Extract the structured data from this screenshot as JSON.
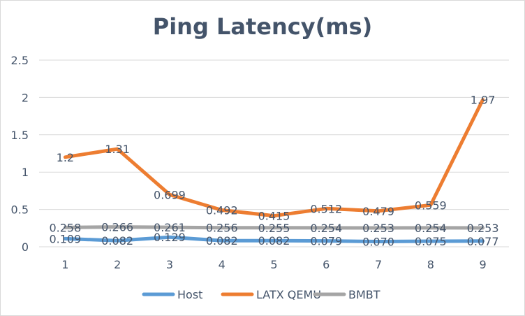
{
  "chart_data": {
    "type": "line",
    "title": "Ping Latency(ms)",
    "categories": [
      "1",
      "2",
      "3",
      "4",
      "5",
      "6",
      "7",
      "8",
      "9"
    ],
    "ylim": [
      0,
      2.5
    ],
    "yticks": [
      "0",
      "0.5",
      "1",
      "1.5",
      "2",
      "2.5"
    ],
    "grid": true,
    "legend_position": "bottom",
    "series": [
      {
        "name": "Host",
        "color": "#5b9bd5",
        "values": [
          0.109,
          0.082,
          0.129,
          0.082,
          0.082,
          0.079,
          0.07,
          0.075,
          0.077
        ],
        "labels": [
          "0.109",
          "0.082",
          "0.129",
          "0.082",
          "0.082",
          "0.079",
          "0.070",
          "0.075",
          "0.077"
        ]
      },
      {
        "name": "LATX QEMU",
        "color": "#ed7d31",
        "values": [
          1.2,
          1.31,
          0.699,
          0.492,
          0.415,
          0.512,
          0.479,
          0.559,
          1.97
        ],
        "labels": [
          "1.2",
          "1.31",
          "0.699",
          "0.492",
          "0.415",
          "0.512",
          "0.479",
          "0.559",
          "1.97"
        ]
      },
      {
        "name": "BMBT",
        "color": "#a5a5a5",
        "values": [
          0.258,
          0.266,
          0.261,
          0.256,
          0.255,
          0.254,
          0.253,
          0.254,
          0.253
        ],
        "labels": [
          "0.258",
          "0.266",
          "0.261",
          "0.256",
          "0.255",
          "0.254",
          "0.253",
          "0.254",
          "0.253"
        ]
      }
    ]
  }
}
